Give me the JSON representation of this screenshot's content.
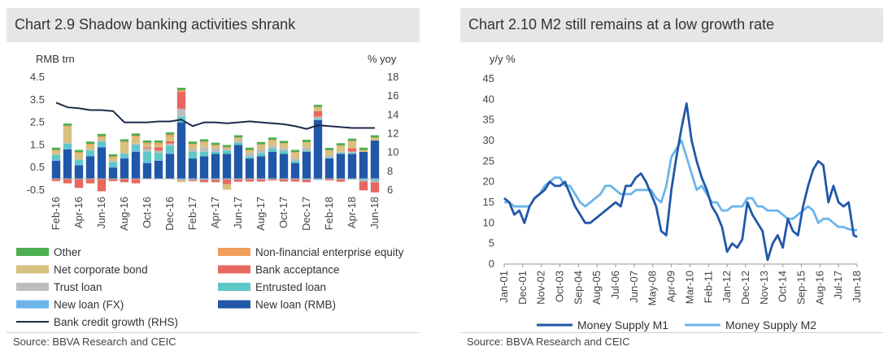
{
  "panels": {
    "left": {
      "title": "Chart 2.9 Shadow banking activities shrank",
      "source": "Source: BBVA Research and CEIC"
    },
    "right": {
      "title": "Chart 2.10 M2 still remains at a low growth rate",
      "source": "Source: BBVA Research and CEIC"
    }
  },
  "chart_data": [
    {
      "type": "bar",
      "stacked": true,
      "ylabel": "RMB trn",
      "y2label": "% yoy",
      "ylim": [
        -0.5,
        4.5
      ],
      "yticks": [
        -0.5,
        0.5,
        1.5,
        2.5,
        3.5,
        4.5
      ],
      "ytick_labels": [
        "-0.5",
        "0.5",
        "1.5",
        "2.5",
        "3.5",
        "4.5"
      ],
      "y2lim": [
        6,
        18
      ],
      "y2ticks": [
        6,
        8,
        10,
        12,
        14,
        16,
        18
      ],
      "y2tick_labels": [
        "6",
        "8",
        "10",
        "12",
        "14",
        "16",
        "18"
      ],
      "categories": [
        "Feb-16",
        "Mar-16",
        "Apr-16",
        "May-16",
        "Jun-16",
        "Jul-16",
        "Aug-16",
        "Sep-16",
        "Oct-16",
        "Nov-16",
        "Dec-16",
        "Jan-17",
        "Feb-17",
        "Mar-17",
        "Apr-17",
        "May-17",
        "Jun-17",
        "Jul-17",
        "Aug-17",
        "Sep-17",
        "Oct-17",
        "Nov-17",
        "Dec-17",
        "Jan-18",
        "Feb-18",
        "Mar-18",
        "Apr-18",
        "May-18",
        "Jun-18"
      ],
      "xtick_labels": [
        "Feb-16",
        "Apr-16",
        "Jun-16",
        "Aug-16",
        "Oct-16",
        "Dec-16",
        "Feb-17",
        "Apr-17",
        "Jun-17",
        "Aug-17",
        "Oct-17",
        "Dec-17",
        "Feb-18",
        "Apr-18",
        "Jun-18"
      ],
      "xtick_index": [
        0,
        2,
        4,
        6,
        8,
        10,
        12,
        14,
        16,
        18,
        20,
        22,
        24,
        26,
        28
      ],
      "series": [
        {
          "name": "New loan (RMB)",
          "color": "#2157a8",
          "values": [
            0.8,
            1.3,
            0.6,
            1.0,
            1.4,
            0.5,
            0.9,
            1.2,
            0.7,
            0.8,
            1.1,
            2.5,
            0.9,
            1.0,
            1.1,
            1.1,
            1.5,
            0.9,
            1.0,
            1.2,
            1.1,
            0.7,
            1.2,
            2.6,
            0.9,
            1.1,
            1.1,
            1.2,
            1.7
          ]
        },
        {
          "name": "New loan (FX)",
          "color": "#6bb5ea",
          "values": [
            0.05,
            0.05,
            0.03,
            0.05,
            0.04,
            0.04,
            0.05,
            0.06,
            0.05,
            0.05,
            0.06,
            -0.05,
            -0.05,
            -0.05,
            -0.05,
            -0.03,
            -0.03,
            -0.02,
            -0.02,
            -0.02,
            -0.02,
            -0.02,
            -0.05,
            -0.05,
            -0.02,
            -0.03,
            -0.03,
            -0.04,
            -0.05
          ]
        },
        {
          "name": "Entrusted loan",
          "color": "#5dc8c6",
          "values": [
            0.2,
            0.2,
            0.2,
            0.2,
            0.2,
            0.2,
            0.15,
            0.25,
            0.45,
            0.3,
            0.3,
            0.25,
            0.3,
            0.2,
            0.1,
            0.15,
            0.1,
            0.1,
            0.15,
            0.15,
            0.15,
            0.1,
            0.05,
            0.05,
            0.05,
            0.05,
            0.05,
            -0.05,
            -0.05
          ]
        },
        {
          "name": "Trust loan",
          "color": "#bdbdbd",
          "values": [
            0.05,
            0.05,
            0.05,
            0.05,
            0.05,
            0.05,
            0.05,
            0.05,
            0.15,
            0.1,
            0.1,
            0.35,
            0.1,
            0.2,
            0.15,
            0.1,
            0.1,
            0.15,
            0.15,
            0.1,
            0.1,
            0.1,
            0.15,
            0.1,
            0.1,
            0.05,
            0.05,
            -0.02,
            -0.05
          ]
        },
        {
          "name": "Bank acceptance",
          "color": "#e8675e",
          "values": [
            -0.1,
            -0.2,
            -0.4,
            -0.2,
            -0.55,
            -0.1,
            -0.15,
            -0.2,
            0.05,
            0.15,
            0.1,
            0.75,
            -0.05,
            -0.1,
            -0.1,
            -0.2,
            -0.1,
            -0.1,
            -0.1,
            -0.05,
            -0.1,
            -0.1,
            -0.1,
            0.25,
            -0.05,
            -0.1,
            0.15,
            -0.4,
            -0.45
          ]
        },
        {
          "name": "Net corporate bond",
          "color": "#d8c07f",
          "values": [
            0.15,
            0.7,
            0.25,
            0.2,
            0.15,
            0.15,
            0.45,
            0.3,
            0.15,
            0.1,
            0.2,
            -0.1,
            0.2,
            0.2,
            0.1,
            -0.25,
            0.1,
            0.1,
            0.2,
            0.25,
            0.2,
            0.25,
            0.2,
            0.15,
            0.2,
            0.25,
            0.3,
            0.05,
            0.1
          ]
        },
        {
          "name": "Non-financial enterprise equity",
          "color": "#f19f5a",
          "values": [
            0.03,
            0.05,
            0.05,
            0.05,
            0.05,
            0.05,
            0.05,
            0.05,
            0.05,
            0.1,
            0.1,
            0.08,
            0.05,
            0.05,
            0.05,
            0.05,
            0.03,
            0.03,
            0.03,
            0.03,
            0.03,
            0.03,
            0.03,
            0.03,
            0.02,
            0.03,
            0.03,
            0.03,
            0.03
          ]
        },
        {
          "name": "Other",
          "color": "#4caf50",
          "values": [
            0.1,
            0.1,
            0.1,
            0.1,
            0.1,
            0.1,
            0.1,
            0.1,
            0.1,
            0.1,
            0.1,
            0.1,
            0.1,
            0.1,
            0.1,
            0.1,
            0.1,
            0.1,
            0.1,
            0.1,
            0.1,
            0.1,
            0.1,
            0.1,
            0.1,
            0.1,
            0.1,
            0.1,
            0.1
          ]
        }
      ],
      "line": {
        "name": "Bank credit growth (RHS)",
        "color": "#1c2a4a",
        "axis": "right",
        "values": [
          15.3,
          14.8,
          14.7,
          14.5,
          14.5,
          14.4,
          13.2,
          13.2,
          13.2,
          13.3,
          13.3,
          13.5,
          12.8,
          13.2,
          13.2,
          13.1,
          13.2,
          13.3,
          13.2,
          13.1,
          13.0,
          12.8,
          12.5,
          12.9,
          12.8,
          12.7,
          12.6,
          12.6,
          12.6
        ]
      },
      "legend": {
        "placement": "bottom",
        "columns": 2,
        "order": [
          "Other",
          "Non-financial enterprise equity",
          "Net corporate bond",
          "Bank acceptance",
          "Trust loan",
          "Entrusted loan",
          "New loan (FX)",
          "New loan (RMB)",
          "Bank credit growth (RHS)"
        ]
      }
    },
    {
      "type": "line",
      "ylabel": "y/y %",
      "ylim": [
        0,
        45
      ],
      "yticks": [
        0,
        5,
        10,
        15,
        20,
        25,
        30,
        35,
        40,
        45
      ],
      "ytick_labels": [
        "0",
        "5",
        "10",
        "15",
        "20",
        "25",
        "30",
        "35",
        "40",
        "45"
      ],
      "x_start": "Jan-01",
      "x_end": "Jun-18",
      "xtick_labels": [
        "Jan-01",
        "Dec-01",
        "Nov-02",
        "Oct-03",
        "Sep-04",
        "Aug-05",
        "Jul-06",
        "Jun-07",
        "May-08",
        "Apr-09",
        "Mar-10",
        "Feb-11",
        "Jan-12",
        "Dec-12",
        "Nov-13",
        "Oct-14",
        "Sep-15",
        "Aug-16",
        "Jul-17",
        "Jun-18"
      ],
      "series": [
        {
          "name": "Money Supply M1",
          "color": "#2157a8",
          "width": 2.8,
          "x": [
            "Jan-01",
            "Apr-01",
            "Jul-01",
            "Oct-01",
            "Jan-02",
            "Apr-02",
            "Jul-02",
            "Oct-02",
            "Jan-03",
            "Apr-03",
            "Jul-03",
            "Oct-03",
            "Jan-04",
            "Apr-04",
            "Jul-04",
            "Oct-04",
            "Jan-05",
            "Apr-05",
            "Jul-05",
            "Oct-05",
            "Jan-06",
            "Apr-06",
            "Jul-06",
            "Oct-06",
            "Jan-07",
            "Apr-07",
            "Jul-07",
            "Oct-07",
            "Jan-08",
            "Apr-08",
            "Jul-08",
            "Oct-08",
            "Jan-09",
            "Apr-09",
            "Jul-09",
            "Oct-09",
            "Jan-10",
            "Apr-10",
            "Jul-10",
            "Oct-10",
            "Jan-11",
            "Apr-11",
            "Jul-11",
            "Oct-11",
            "Jan-12",
            "Apr-12",
            "Jul-12",
            "Oct-12",
            "Jan-13",
            "Apr-13",
            "Jul-13",
            "Oct-13",
            "Jan-14",
            "Apr-14",
            "Jul-14",
            "Oct-14",
            "Jan-15",
            "Apr-15",
            "Jul-15",
            "Oct-15",
            "Jan-16",
            "Apr-16",
            "Jul-16",
            "Oct-16",
            "Jan-17",
            "Apr-17",
            "Jul-17",
            "Oct-17",
            "Jan-18",
            "Apr-18",
            "Jun-18"
          ],
          "values": [
            16,
            15,
            12,
            13,
            10,
            14,
            16,
            17,
            18,
            20,
            19,
            19,
            20,
            17,
            14,
            12,
            10,
            10,
            11,
            12,
            13,
            14,
            15,
            14,
            19,
            19,
            21,
            22,
            20,
            17,
            14,
            8,
            7,
            18,
            26,
            33,
            39,
            30,
            25,
            21,
            18,
            14,
            12,
            9,
            3,
            5,
            4,
            6,
            15,
            12,
            10,
            8,
            1,
            5,
            7,
            4,
            11,
            8,
            7,
            14,
            19,
            23,
            25,
            24,
            15,
            19,
            15,
            14,
            15,
            7,
            6.6
          ]
        },
        {
          "name": "Money Supply M2",
          "color": "#6bb5ea",
          "width": 2.8,
          "x": [
            "Jan-01",
            "Apr-01",
            "Jul-01",
            "Oct-01",
            "Jan-02",
            "Apr-02",
            "Jul-02",
            "Oct-02",
            "Jan-03",
            "Apr-03",
            "Jul-03",
            "Oct-03",
            "Jan-04",
            "Apr-04",
            "Jul-04",
            "Oct-04",
            "Jan-05",
            "Apr-05",
            "Jul-05",
            "Oct-05",
            "Jan-06",
            "Apr-06",
            "Jul-06",
            "Oct-06",
            "Jan-07",
            "Apr-07",
            "Jul-07",
            "Oct-07",
            "Jan-08",
            "Apr-08",
            "Jul-08",
            "Oct-08",
            "Jan-09",
            "Apr-09",
            "Jul-09",
            "Oct-09",
            "Jan-10",
            "Apr-10",
            "Jul-10",
            "Oct-10",
            "Jan-11",
            "Apr-11",
            "Jul-11",
            "Oct-11",
            "Jan-12",
            "Apr-12",
            "Jul-12",
            "Oct-12",
            "Jan-13",
            "Apr-13",
            "Jul-13",
            "Oct-13",
            "Jan-14",
            "Apr-14",
            "Jul-14",
            "Oct-14",
            "Jan-15",
            "Apr-15",
            "Jul-15",
            "Oct-15",
            "Jan-16",
            "Apr-16",
            "Jul-16",
            "Oct-16",
            "Jan-17",
            "Apr-17",
            "Jul-17",
            "Oct-17",
            "Jan-18",
            "Apr-18",
            "Jun-18"
          ],
          "values": [
            15,
            15,
            14,
            14,
            14,
            14,
            16,
            17,
            19,
            20,
            21,
            21,
            19,
            19,
            17,
            15,
            14,
            15,
            16,
            17,
            19,
            19,
            18,
            17,
            17,
            17,
            18,
            18,
            18,
            18,
            16,
            15,
            19,
            26,
            28,
            30,
            26,
            22,
            18,
            19,
            17,
            15,
            15,
            13,
            13,
            14,
            14,
            14,
            16,
            16,
            14,
            14,
            13,
            13,
            13,
            12,
            11,
            11,
            12,
            13,
            14,
            13,
            10,
            11,
            11,
            10,
            9,
            9,
            8.5,
            8.2,
            8.3
          ]
        }
      ],
      "legend": {
        "placement": "bottom",
        "columns": 2
      }
    }
  ]
}
